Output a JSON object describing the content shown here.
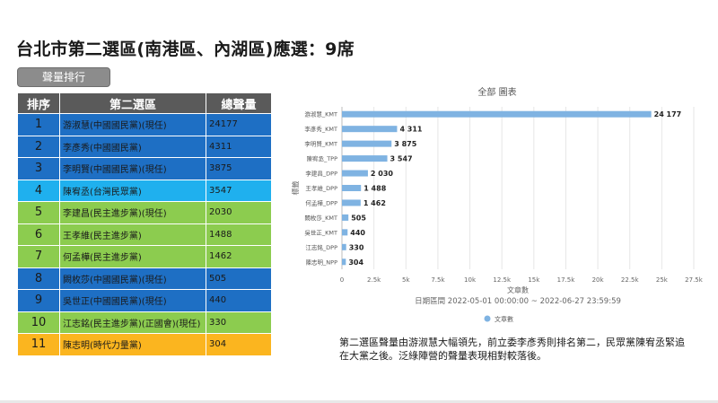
{
  "title": "台北市第二選區(南港區、內湖區)應選：9席",
  "tag_label": "聲量排行",
  "table": {
    "headers": [
      "排序",
      "第二選區",
      "總聲量"
    ],
    "rows": [
      {
        "rank": "1",
        "name": "游淑慧(中國國民黨)(現任)",
        "volume": "24177",
        "party": "kmt"
      },
      {
        "rank": "2",
        "name": "李彥秀(中國國民黨)",
        "volume": "4311",
        "party": "kmt"
      },
      {
        "rank": "3",
        "name": "李明賢(中國國民黨)(現任)",
        "volume": "3875",
        "party": "kmt"
      },
      {
        "rank": "4",
        "name": "陳宥丞(台灣民眾黨)",
        "volume": "3547",
        "party": "tpp"
      },
      {
        "rank": "5",
        "name": "李建昌(民主進步黨)(現任)",
        "volume": "2030",
        "party": "dpp"
      },
      {
        "rank": "6",
        "name": "王孝維(民主進步黨)",
        "volume": "1488",
        "party": "dpp"
      },
      {
        "rank": "7",
        "name": "何孟樺(民主進步黨)",
        "volume": "1462",
        "party": "dpp"
      },
      {
        "rank": "8",
        "name": "闕枚莎(中國國民黨)(現任)",
        "volume": "505",
        "party": "kmt"
      },
      {
        "rank": "9",
        "name": "吳世正(中國國民黨)(現任)",
        "volume": "440",
        "party": "kmt"
      },
      {
        "rank": "10",
        "name": "江志銘(民主進步黨)(正國會)(現任)",
        "volume": "330",
        "party": "dpp"
      },
      {
        "rank": "11",
        "name": "陳志明(時代力量黨)",
        "volume": "304",
        "party": "npp"
      }
    ]
  },
  "chart_data": {
    "type": "bar",
    "orientation": "horizontal",
    "title": "全部 圖表",
    "xlabel": "文章數",
    "ylabel": "標籤",
    "subtitle": "日期區間 2022-05-01 00:00:00 ~ 2022-06-27 23:59:59",
    "categories": [
      "游淑慧_KMT",
      "李彥秀_KMT",
      "李明賢_KMT",
      "陳宥丞_TPP",
      "李建昌_DPP",
      "王孝維_DPP",
      "何孟樺_DPP",
      "闕枚莎_KMT",
      "吳世正_KMT",
      "江志銘_DPP",
      "陳志明_NPP"
    ],
    "series": [
      {
        "name": "文章數",
        "values": [
          24177,
          4311,
          3875,
          3547,
          2030,
          1488,
          1462,
          505,
          440,
          330,
          304
        ]
      }
    ],
    "value_labels": [
      "24 177",
      "4 311",
      "3 875",
      "3 547",
      "2 030",
      "1 488",
      "1 462",
      "505",
      "440",
      "330",
      "304"
    ],
    "xlim": [
      0,
      27500
    ],
    "xticks": [
      0,
      2500,
      5000,
      7500,
      10000,
      12500,
      15000,
      17500,
      20000,
      22500,
      25000,
      27500
    ],
    "xtick_labels": [
      "0",
      "2.5k",
      "5k",
      "7.5k",
      "10k",
      "12.5k",
      "15k",
      "17.5k",
      "20k",
      "22.5k",
      "25k",
      "27.5k"
    ],
    "grid": true,
    "legend": "bottom",
    "colors": {
      "bar": "#7fb3e2",
      "grid": "#e6e6e6",
      "axis": "#bdbdbd"
    }
  },
  "description": "第二選區聲量由游淑慧大幅領先，前立委李彥秀則排名第二，民眾黨陳宥丞緊追在大黨之後。泛綠陣營的聲量表現相對較落後。"
}
